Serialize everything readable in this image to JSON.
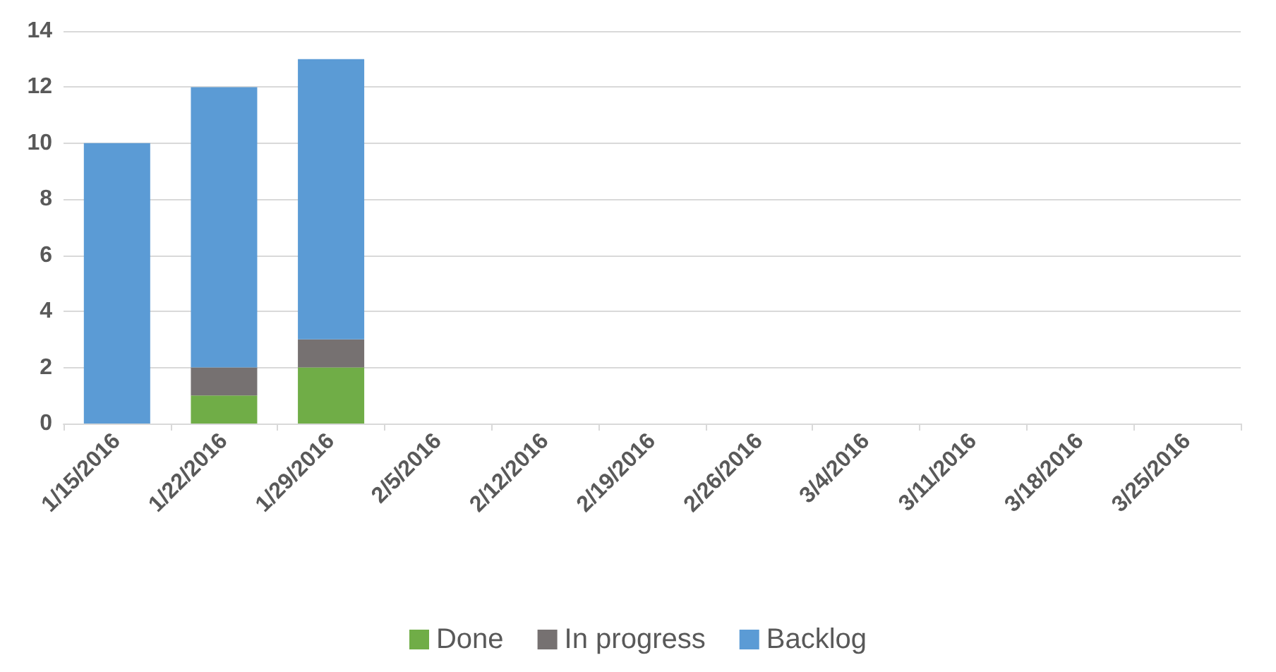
{
  "chart_data": {
    "type": "bar",
    "stacked": true,
    "categories": [
      "1/15/2016",
      "1/22/2016",
      "1/29/2016",
      "2/5/2016",
      "2/12/2016",
      "2/19/2016",
      "2/26/2016",
      "3/4/2016",
      "3/11/2016",
      "3/18/2016",
      "3/25/2016"
    ],
    "series": [
      {
        "name": "Done",
        "color": "#70ad47",
        "values": [
          0,
          1,
          2,
          null,
          null,
          null,
          null,
          null,
          null,
          null,
          null
        ]
      },
      {
        "name": "In progress",
        "color": "#767171",
        "values": [
          0,
          1,
          1,
          null,
          null,
          null,
          null,
          null,
          null,
          null,
          null
        ]
      },
      {
        "name": "Backlog",
        "color": "#5b9bd5",
        "values": [
          10,
          10,
          10,
          null,
          null,
          null,
          null,
          null,
          null,
          null,
          null
        ]
      }
    ],
    "ylim": [
      0,
      14
    ],
    "yticks": [
      0,
      2,
      4,
      6,
      8,
      10,
      12,
      14
    ],
    "grid": "y",
    "legend": "bottom"
  }
}
